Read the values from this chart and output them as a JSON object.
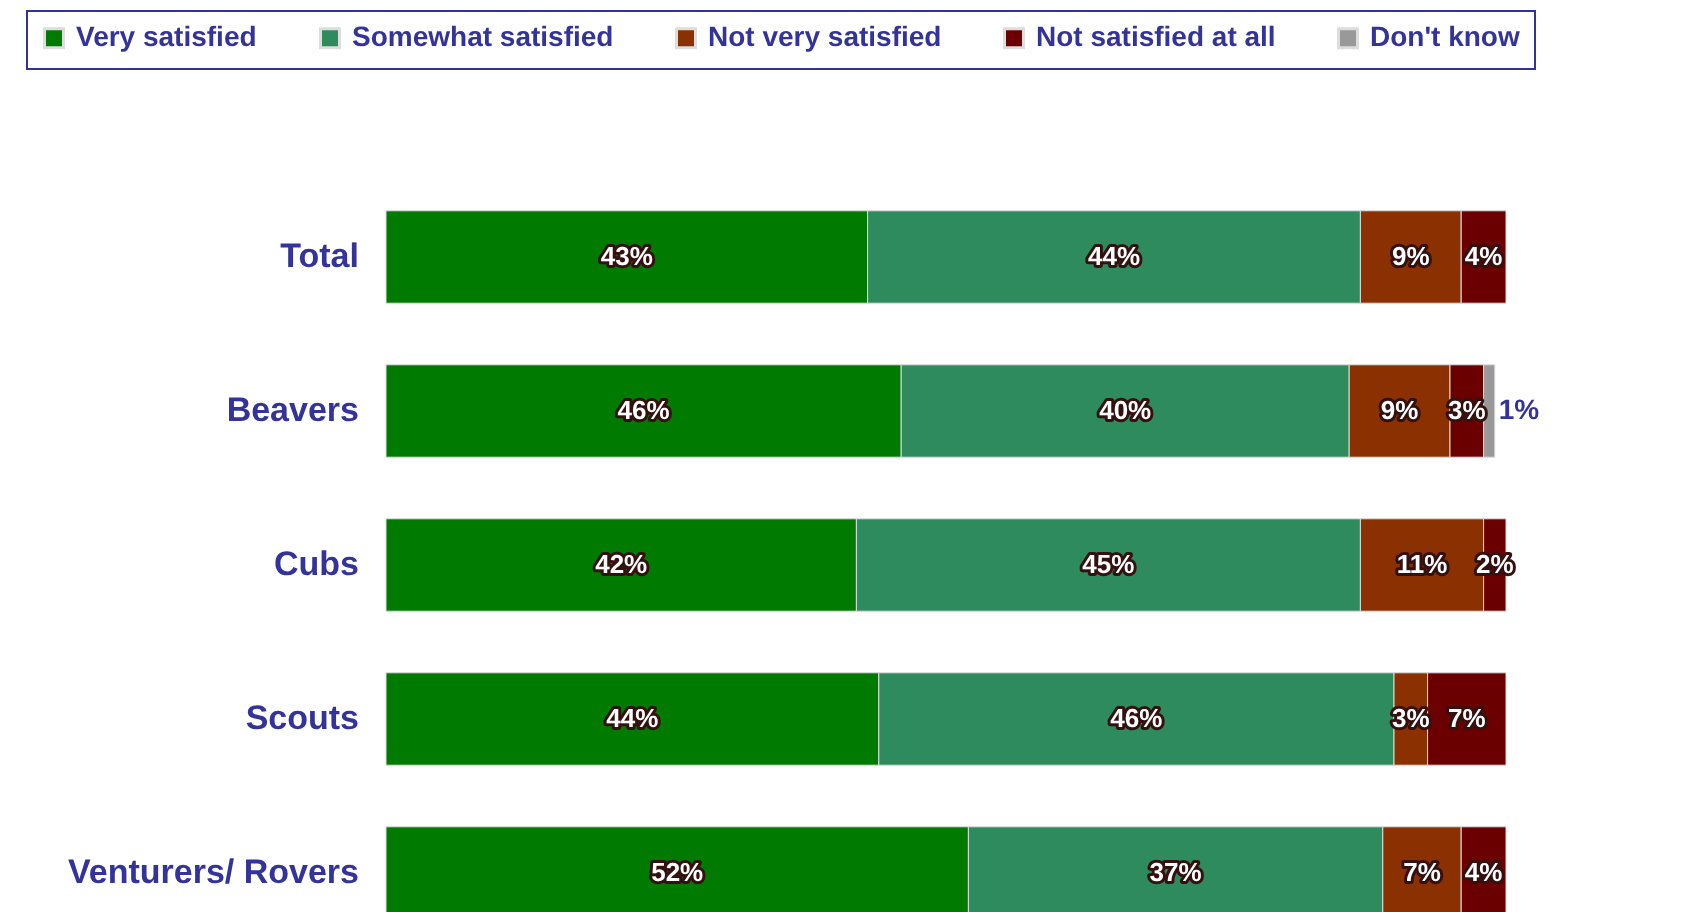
{
  "chart_data": {
    "type": "bar",
    "orientation": "horizontal",
    "stacked": true,
    "categories": [
      "Total",
      "Beavers",
      "Cubs",
      "Scouts",
      "Venturers/ Rovers"
    ],
    "series": [
      {
        "name": "Very satisfied",
        "color": "#007a00",
        "values": [
          43,
          46,
          42,
          44,
          52
        ],
        "value_labels": [
          "43%",
          "46%",
          "42%",
          "44%",
          "52%"
        ]
      },
      {
        "name": "Somewhat satisfied",
        "color": "#2e8b5e",
        "values": [
          44,
          40,
          45,
          46,
          37
        ],
        "value_labels": [
          "44%",
          "40%",
          "45%",
          "46%",
          "37%"
        ]
      },
      {
        "name": "Not very satisfied",
        "color": "#8b3000",
        "values": [
          9,
          9,
          11,
          3,
          7
        ],
        "value_labels": [
          "9%",
          "9%",
          "11%",
          "3%",
          "7%"
        ]
      },
      {
        "name": "Not satisfied at all",
        "color": "#6b0000",
        "values": [
          4,
          3,
          2,
          7,
          4
        ],
        "value_labels": [
          "4%",
          "3%",
          "2%",
          "7%",
          "4%"
        ]
      },
      {
        "name": "Don't know",
        "color": "#999999",
        "values": [
          null,
          1,
          null,
          null,
          null
        ],
        "value_labels": [
          null,
          "1%",
          null,
          null,
          null
        ]
      }
    ],
    "legend": "top"
  }
}
